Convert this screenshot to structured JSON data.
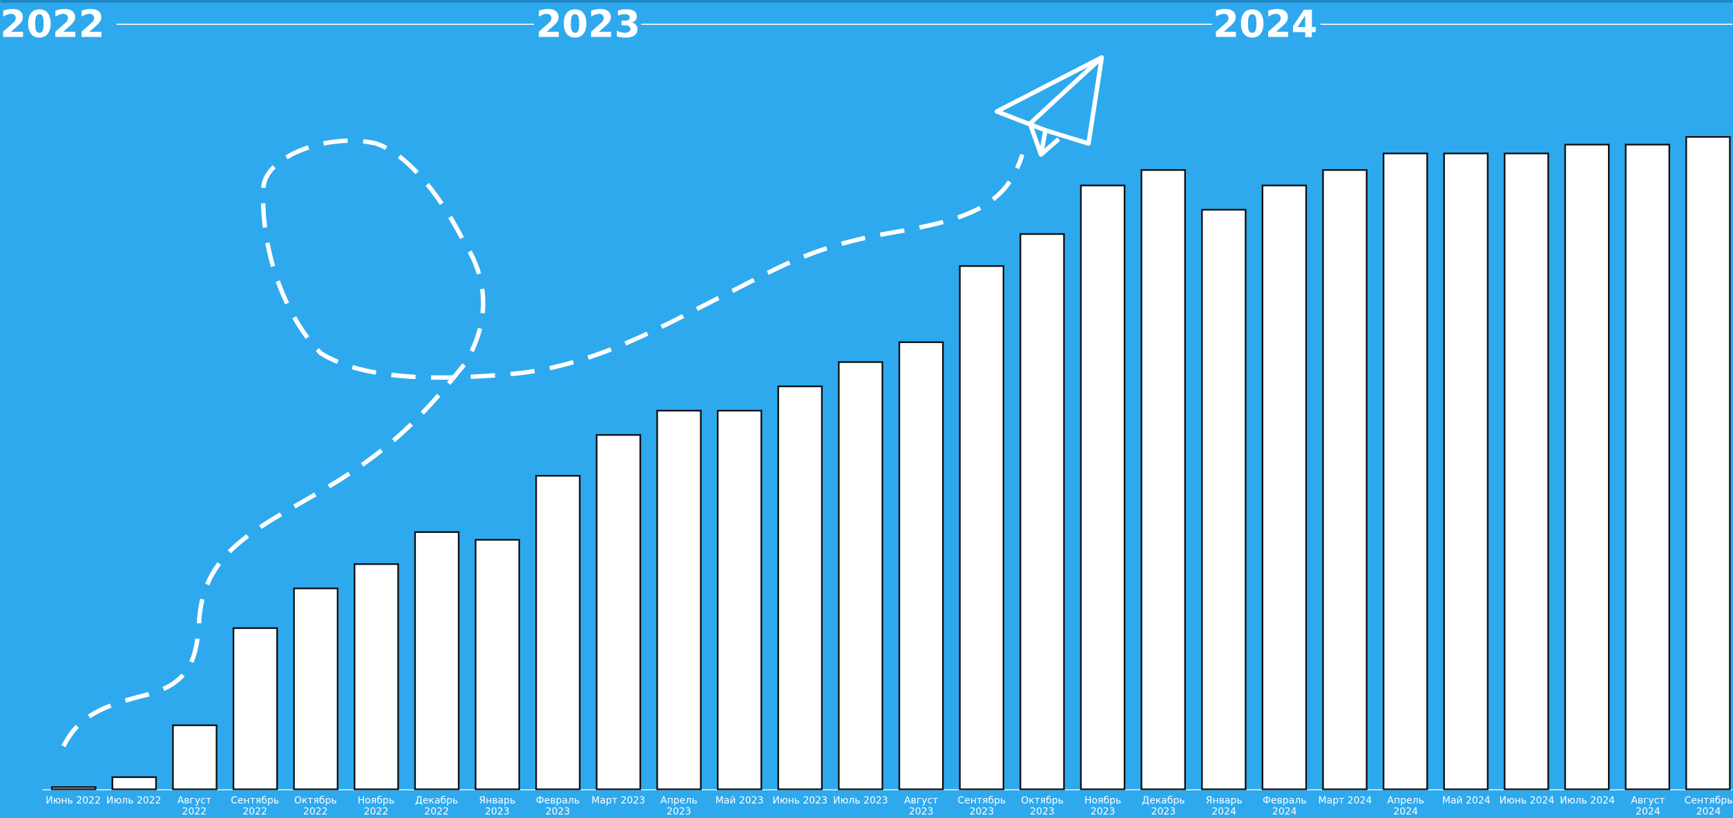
{
  "chart_data": {
    "type": "bar",
    "years": [
      "2022",
      "2023",
      "2024"
    ],
    "categories": [
      "Июнь 2022",
      "Июль 2022",
      "Август 2022",
      "Сентябрь 2022",
      "Октябрь 2022",
      "Ноябрь 2022",
      "Декабрь 2022",
      "Январь 2023",
      "Февраль 2023",
      "Март 2023",
      "Апрель 2023",
      "Май 2023",
      "Июнь 2023",
      "Июль 2023",
      "Август 2023",
      "Сентябрь 2023",
      "Октябрь 2023",
      "Ноябрь 2023",
      "Декабрь 2023",
      "Январь 2024",
      "Февраль 2024",
      "Март 2024",
      "Апрель 2024",
      "Май 2024",
      "Июнь 2024",
      "Июль 2024",
      "Август 2024",
      "Сентябрь 2024"
    ],
    "values": [
      2,
      11,
      58,
      146,
      182,
      204,
      233,
      226,
      284,
      321,
      343,
      343,
      365,
      387,
      405,
      474,
      503,
      547,
      561,
      525,
      547,
      561,
      576,
      576,
      576,
      584,
      584,
      591
    ],
    "color": "#ffffff",
    "ylim": [
      0,
      715
    ]
  }
}
